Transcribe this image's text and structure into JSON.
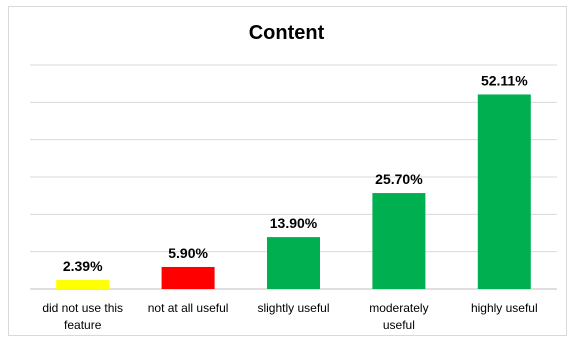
{
  "chart_data": {
    "type": "bar",
    "title": "Content",
    "categories": [
      [
        "did not use this",
        "feature"
      ],
      [
        "not at all useful"
      ],
      [
        "slightly useful"
      ],
      [
        "moderately",
        "useful"
      ],
      [
        "highly useful"
      ]
    ],
    "values": [
      2.39,
      5.9,
      13.9,
      25.7,
      52.11
    ],
    "value_labels": [
      "2.39%",
      "5.90%",
      "13.90%",
      "25.70%",
      "52.11%"
    ],
    "colors": [
      "#ffff00",
      "#ff0000",
      "#00b050",
      "#00b050",
      "#00b050"
    ],
    "ylim": [
      0,
      60
    ],
    "grid": true,
    "legend": false,
    "xlabel": "",
    "ylabel": ""
  }
}
